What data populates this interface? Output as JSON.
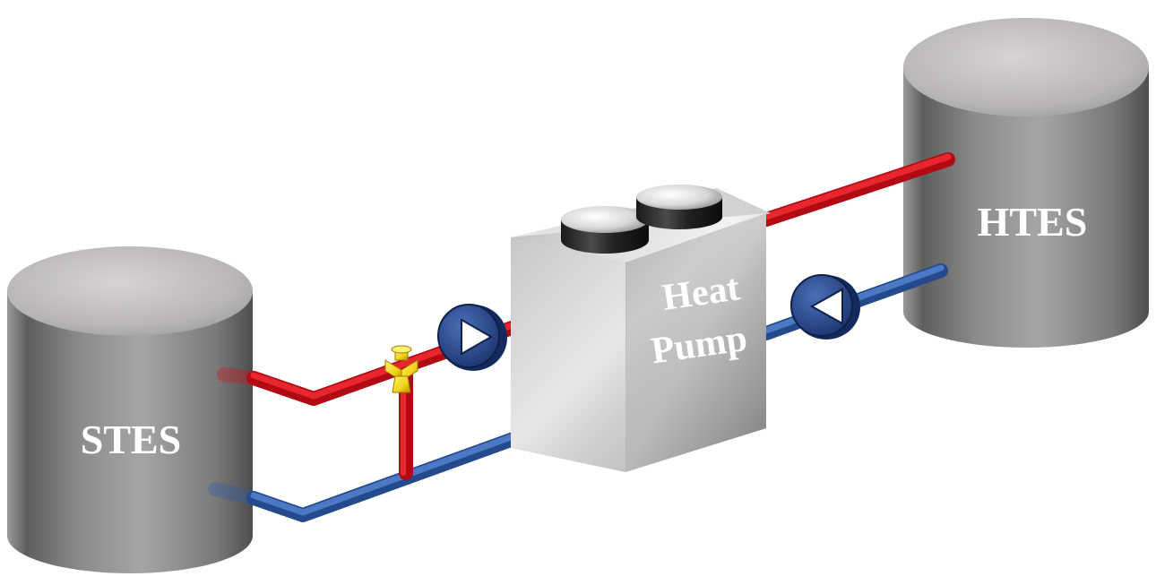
{
  "labels": {
    "stes": "STES",
    "htes": "HTES",
    "heat_pump_line1": "Heat",
    "heat_pump_line2": "Pump"
  },
  "colors": {
    "hot_pipe": "#d4101a",
    "cold_pipe": "#2f5ba8",
    "tank_gray": "#8a8a8a",
    "pump_blue": "#2b4a8c",
    "valve_yellow": "#f2d21a"
  },
  "icons": {
    "pump": "circulation-pump-icon",
    "valve": "three-way-valve-icon"
  }
}
